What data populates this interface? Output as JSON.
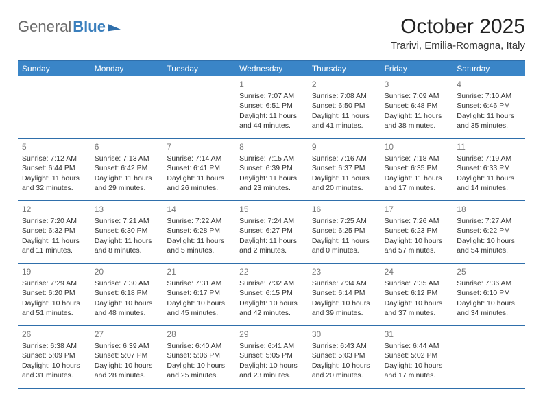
{
  "header": {
    "logo_general": "General",
    "logo_blue": "Blue",
    "month_title": "October 2025",
    "location": "Trarivi, Emilia-Romagna, Italy"
  },
  "colors": {
    "header_bar": "#3a85c7",
    "rule": "#2f6fab",
    "weekday_text": "#ffffff",
    "daynum": "#777777",
    "body_text": "#333333",
    "background": "#ffffff"
  },
  "weekdays": [
    "Sunday",
    "Monday",
    "Tuesday",
    "Wednesday",
    "Thursday",
    "Friday",
    "Saturday"
  ],
  "layout": {
    "columns": 7,
    "rows": 5,
    "cell_fontsize_pt": 8,
    "daynum_fontsize_pt": 9,
    "weekday_fontsize_pt": 9,
    "title_fontsize_pt": 22,
    "location_fontsize_pt": 11
  },
  "weeks": [
    [
      {
        "day": "",
        "sunrise": "",
        "sunset": "",
        "daylight1": "",
        "daylight2": ""
      },
      {
        "day": "",
        "sunrise": "",
        "sunset": "",
        "daylight1": "",
        "daylight2": ""
      },
      {
        "day": "",
        "sunrise": "",
        "sunset": "",
        "daylight1": "",
        "daylight2": ""
      },
      {
        "day": "1",
        "sunrise": "Sunrise: 7:07 AM",
        "sunset": "Sunset: 6:51 PM",
        "daylight1": "Daylight: 11 hours",
        "daylight2": "and 44 minutes."
      },
      {
        "day": "2",
        "sunrise": "Sunrise: 7:08 AM",
        "sunset": "Sunset: 6:50 PM",
        "daylight1": "Daylight: 11 hours",
        "daylight2": "and 41 minutes."
      },
      {
        "day": "3",
        "sunrise": "Sunrise: 7:09 AM",
        "sunset": "Sunset: 6:48 PM",
        "daylight1": "Daylight: 11 hours",
        "daylight2": "and 38 minutes."
      },
      {
        "day": "4",
        "sunrise": "Sunrise: 7:10 AM",
        "sunset": "Sunset: 6:46 PM",
        "daylight1": "Daylight: 11 hours",
        "daylight2": "and 35 minutes."
      }
    ],
    [
      {
        "day": "5",
        "sunrise": "Sunrise: 7:12 AM",
        "sunset": "Sunset: 6:44 PM",
        "daylight1": "Daylight: 11 hours",
        "daylight2": "and 32 minutes."
      },
      {
        "day": "6",
        "sunrise": "Sunrise: 7:13 AM",
        "sunset": "Sunset: 6:42 PM",
        "daylight1": "Daylight: 11 hours",
        "daylight2": "and 29 minutes."
      },
      {
        "day": "7",
        "sunrise": "Sunrise: 7:14 AM",
        "sunset": "Sunset: 6:41 PM",
        "daylight1": "Daylight: 11 hours",
        "daylight2": "and 26 minutes."
      },
      {
        "day": "8",
        "sunrise": "Sunrise: 7:15 AM",
        "sunset": "Sunset: 6:39 PM",
        "daylight1": "Daylight: 11 hours",
        "daylight2": "and 23 minutes."
      },
      {
        "day": "9",
        "sunrise": "Sunrise: 7:16 AM",
        "sunset": "Sunset: 6:37 PM",
        "daylight1": "Daylight: 11 hours",
        "daylight2": "and 20 minutes."
      },
      {
        "day": "10",
        "sunrise": "Sunrise: 7:18 AM",
        "sunset": "Sunset: 6:35 PM",
        "daylight1": "Daylight: 11 hours",
        "daylight2": "and 17 minutes."
      },
      {
        "day": "11",
        "sunrise": "Sunrise: 7:19 AM",
        "sunset": "Sunset: 6:33 PM",
        "daylight1": "Daylight: 11 hours",
        "daylight2": "and 14 minutes."
      }
    ],
    [
      {
        "day": "12",
        "sunrise": "Sunrise: 7:20 AM",
        "sunset": "Sunset: 6:32 PM",
        "daylight1": "Daylight: 11 hours",
        "daylight2": "and 11 minutes."
      },
      {
        "day": "13",
        "sunrise": "Sunrise: 7:21 AM",
        "sunset": "Sunset: 6:30 PM",
        "daylight1": "Daylight: 11 hours",
        "daylight2": "and 8 minutes."
      },
      {
        "day": "14",
        "sunrise": "Sunrise: 7:22 AM",
        "sunset": "Sunset: 6:28 PM",
        "daylight1": "Daylight: 11 hours",
        "daylight2": "and 5 minutes."
      },
      {
        "day": "15",
        "sunrise": "Sunrise: 7:24 AM",
        "sunset": "Sunset: 6:27 PM",
        "daylight1": "Daylight: 11 hours",
        "daylight2": "and 2 minutes."
      },
      {
        "day": "16",
        "sunrise": "Sunrise: 7:25 AM",
        "sunset": "Sunset: 6:25 PM",
        "daylight1": "Daylight: 11 hours",
        "daylight2": "and 0 minutes."
      },
      {
        "day": "17",
        "sunrise": "Sunrise: 7:26 AM",
        "sunset": "Sunset: 6:23 PM",
        "daylight1": "Daylight: 10 hours",
        "daylight2": "and 57 minutes."
      },
      {
        "day": "18",
        "sunrise": "Sunrise: 7:27 AM",
        "sunset": "Sunset: 6:22 PM",
        "daylight1": "Daylight: 10 hours",
        "daylight2": "and 54 minutes."
      }
    ],
    [
      {
        "day": "19",
        "sunrise": "Sunrise: 7:29 AM",
        "sunset": "Sunset: 6:20 PM",
        "daylight1": "Daylight: 10 hours",
        "daylight2": "and 51 minutes."
      },
      {
        "day": "20",
        "sunrise": "Sunrise: 7:30 AM",
        "sunset": "Sunset: 6:18 PM",
        "daylight1": "Daylight: 10 hours",
        "daylight2": "and 48 minutes."
      },
      {
        "day": "21",
        "sunrise": "Sunrise: 7:31 AM",
        "sunset": "Sunset: 6:17 PM",
        "daylight1": "Daylight: 10 hours",
        "daylight2": "and 45 minutes."
      },
      {
        "day": "22",
        "sunrise": "Sunrise: 7:32 AM",
        "sunset": "Sunset: 6:15 PM",
        "daylight1": "Daylight: 10 hours",
        "daylight2": "and 42 minutes."
      },
      {
        "day": "23",
        "sunrise": "Sunrise: 7:34 AM",
        "sunset": "Sunset: 6:14 PM",
        "daylight1": "Daylight: 10 hours",
        "daylight2": "and 39 minutes."
      },
      {
        "day": "24",
        "sunrise": "Sunrise: 7:35 AM",
        "sunset": "Sunset: 6:12 PM",
        "daylight1": "Daylight: 10 hours",
        "daylight2": "and 37 minutes."
      },
      {
        "day": "25",
        "sunrise": "Sunrise: 7:36 AM",
        "sunset": "Sunset: 6:10 PM",
        "daylight1": "Daylight: 10 hours",
        "daylight2": "and 34 minutes."
      }
    ],
    [
      {
        "day": "26",
        "sunrise": "Sunrise: 6:38 AM",
        "sunset": "Sunset: 5:09 PM",
        "daylight1": "Daylight: 10 hours",
        "daylight2": "and 31 minutes."
      },
      {
        "day": "27",
        "sunrise": "Sunrise: 6:39 AM",
        "sunset": "Sunset: 5:07 PM",
        "daylight1": "Daylight: 10 hours",
        "daylight2": "and 28 minutes."
      },
      {
        "day": "28",
        "sunrise": "Sunrise: 6:40 AM",
        "sunset": "Sunset: 5:06 PM",
        "daylight1": "Daylight: 10 hours",
        "daylight2": "and 25 minutes."
      },
      {
        "day": "29",
        "sunrise": "Sunrise: 6:41 AM",
        "sunset": "Sunset: 5:05 PM",
        "daylight1": "Daylight: 10 hours",
        "daylight2": "and 23 minutes."
      },
      {
        "day": "30",
        "sunrise": "Sunrise: 6:43 AM",
        "sunset": "Sunset: 5:03 PM",
        "daylight1": "Daylight: 10 hours",
        "daylight2": "and 20 minutes."
      },
      {
        "day": "31",
        "sunrise": "Sunrise: 6:44 AM",
        "sunset": "Sunset: 5:02 PM",
        "daylight1": "Daylight: 10 hours",
        "daylight2": "and 17 minutes."
      },
      {
        "day": "",
        "sunrise": "",
        "sunset": "",
        "daylight1": "",
        "daylight2": ""
      }
    ]
  ]
}
